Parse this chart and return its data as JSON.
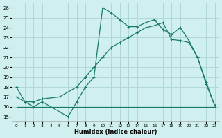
{
  "xlabel": "Humidex (Indice chaleur)",
  "ylabel": "",
  "bg_color": "#cff0ee",
  "grid_color": "#b0d8d4",
  "line_color": "#1a7a6a",
  "xlim": [
    -0.5,
    23.5
  ],
  "ylim": [
    14.5,
    26.5
  ],
  "yticks": [
    15,
    16,
    17,
    18,
    19,
    20,
    21,
    22,
    23,
    24,
    25,
    26
  ],
  "xticks": [
    0,
    1,
    2,
    3,
    4,
    5,
    6,
    7,
    8,
    9,
    10,
    11,
    12,
    13,
    14,
    15,
    16,
    17,
    18,
    19,
    20,
    21,
    22,
    23
  ],
  "line1_x": [
    0,
    1,
    2,
    3,
    4,
    5,
    6,
    7,
    8,
    9,
    10,
    11,
    12,
    13,
    14,
    15,
    16,
    17,
    18,
    19,
    20,
    21,
    22,
    23
  ],
  "line1_y": [
    18,
    16.5,
    16,
    16.5,
    16,
    15.5,
    15,
    16.5,
    18,
    19,
    26,
    25.5,
    24.8,
    24.1,
    24.1,
    24.5,
    24.8,
    23.8,
    23.3,
    24,
    22.7,
    21,
    18.3,
    16.1
  ],
  "line2_x": [
    0,
    10,
    23
  ],
  "line2_y": [
    16,
    16,
    16
  ],
  "line3_x": [
    0,
    1,
    2,
    3,
    5,
    7,
    8,
    9,
    10,
    11,
    12,
    13,
    14,
    15,
    16,
    17,
    18,
    19,
    20,
    21,
    22,
    23
  ],
  "line3_y": [
    17,
    16.5,
    16.5,
    16.8,
    17.0,
    18.0,
    19.0,
    20.0,
    21.0,
    22.0,
    22.5,
    23.0,
    23.5,
    24.0,
    24.2,
    24.5,
    22.8,
    22.7,
    22.5,
    21.0,
    18.5,
    16.1
  ]
}
